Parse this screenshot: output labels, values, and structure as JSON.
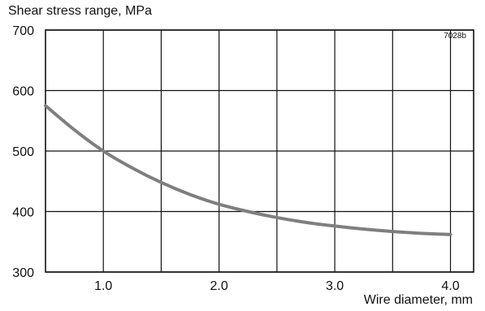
{
  "chart_data": {
    "type": "line",
    "ylabel": "Shear stress range, MPa",
    "xlabel": "Wire diameter, mm",
    "annotation": "7028b",
    "xlim": [
      0.5,
      4.2
    ],
    "ylim": [
      300,
      700
    ],
    "xticks": [
      1.0,
      1.5,
      2.0,
      2.5,
      3.0,
      3.5,
      4.0
    ],
    "xtick_labels": [
      "1.0",
      "",
      "2.0",
      "",
      "3.0",
      "",
      "4.0"
    ],
    "yticks": [
      300,
      400,
      500,
      600,
      700
    ],
    "ytick_labels": [
      "300",
      "400",
      "500",
      "600",
      "700"
    ],
    "grid": true,
    "series": [
      {
        "color": "#7f7f7f",
        "x": [
          0.5,
          0.75,
          1.0,
          1.25,
          1.5,
          1.75,
          2.0,
          2.25,
          2.5,
          2.75,
          3.0,
          3.25,
          3.5,
          3.75,
          4.0
        ],
        "y": [
          575,
          535,
          500,
          472,
          448,
          428,
          412,
          400,
          390,
          382,
          376,
          371,
          367,
          364,
          362
        ]
      }
    ]
  }
}
